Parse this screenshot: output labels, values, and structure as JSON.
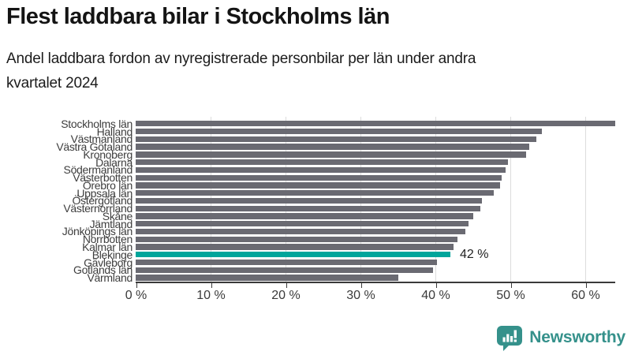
{
  "header": {
    "title": "Flest laddbara bilar i Stockholms län",
    "subtitle_line1": "Andel laddbara fordon av nyregistrerade personbilar per län under andra",
    "subtitle_line2": "kvartalet 2024"
  },
  "chart_data": {
    "type": "bar",
    "orientation": "horizontal",
    "title": "Flest laddbara bilar i Stockholms län",
    "subtitle": "Andel laddbara fordon av nyregistrerade personbilar per län under andra kvartalet 2024",
    "categories": [
      "Stockholms län",
      "Halland",
      "Västmanland",
      "Västra Götaland",
      "Kronoberg",
      "Dalarna",
      "Södermanland",
      "Västerbotten",
      "Örebro län",
      "Uppsala län",
      "Östergötland",
      "Västernorrland",
      "Skåne",
      "Jämtland",
      "Jönköpings län",
      "Norrbotten",
      "Kalmar län",
      "Blekinge",
      "Gävleborg",
      "Gotlands län",
      "Värmland"
    ],
    "values": [
      64.0,
      54.2,
      53.5,
      52.5,
      52.1,
      49.7,
      49.4,
      48.8,
      48.6,
      47.8,
      46.2,
      46.0,
      45.0,
      44.4,
      44.0,
      42.9,
      42.4,
      42.0,
      40.2,
      39.7,
      35.0
    ],
    "unit": "%",
    "highlight": {
      "category": "Blekinge",
      "index": 17,
      "value": 42,
      "label": "42 %"
    },
    "xlabel": "",
    "ylabel": "",
    "xticks": [
      0,
      10,
      20,
      30,
      40,
      50,
      60
    ],
    "xtick_labels": [
      "0 %",
      "10 %",
      "20 %",
      "30 %",
      "40 %",
      "50 %",
      "60 %"
    ],
    "xlim": [
      0,
      64.5
    ],
    "grid": "vertical-gridlines-10pct",
    "legend": "none",
    "colors": {
      "bar": "#6a6a72",
      "highlight": "#00a59b",
      "gridline": "#dcdcdc",
      "axis": "#3a3a3a",
      "category_label": "#3d3d3d",
      "tick_label": "#3a3a3a",
      "annotation": "#222222"
    }
  },
  "branding": {
    "logo_text": "Newsworthy",
    "logo_color": "#35918b",
    "logo_icon": "bar-chart-speech-bubble-icon"
  }
}
